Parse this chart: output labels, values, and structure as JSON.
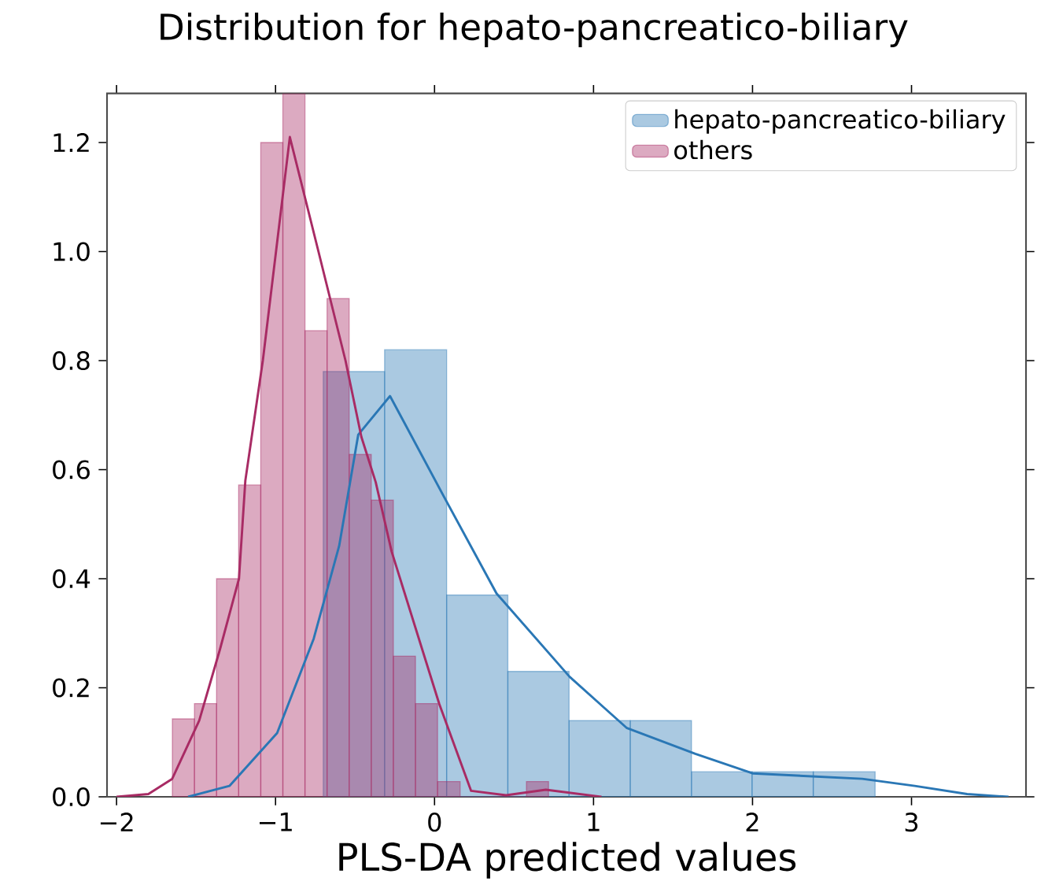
{
  "chart_data": {
    "type": "histogram",
    "title": "Distribution for hepato-pancreatico-biliary",
    "xlabel": "PLS-DA predicted values",
    "series": [
      {
        "name": "hepato-pancreatico-biliary",
        "color": "#2a77b5",
        "bins": [
          -0.7,
          -0.314,
          0.076,
          0.461,
          0.846,
          1.231,
          1.616,
          1.997,
          2.382,
          2.771
        ],
        "values": [
          0.78,
          0.82,
          0.37,
          0.23,
          0.14,
          0.14,
          0.046,
          0.046,
          0.046
        ]
      },
      {
        "name": "others",
        "color": "#a82b64",
        "bins": [
          -1.649,
          -1.51,
          -1.371,
          -1.232,
          -1.093,
          -0.954,
          -0.815,
          -0.676,
          -0.537,
          -0.398,
          -0.259,
          -0.12,
          0.019,
          0.161,
          0.3,
          0.439,
          0.578,
          0.717
        ],
        "values": [
          0.143,
          0.171,
          0.4,
          0.572,
          1.2,
          1.29,
          0.855,
          0.914,
          0.628,
          0.544,
          0.258,
          0.171,
          0.028,
          0,
          0,
          0,
          0.028
        ]
      },
      {
        "type": "line",
        "color": "#2a77b5",
        "x": [
          -1.55,
          -1.29,
          -0.99,
          -0.76,
          -0.6,
          -0.48,
          -0.28,
          0.06,
          0.39,
          0.85,
          1.21,
          1.64,
          2.0,
          2.69,
          3.02,
          3.35,
          3.61
        ],
        "values": [
          0,
          0.02,
          0.117,
          0.29,
          0.46,
          0.664,
          0.735,
          0.55,
          0.373,
          0.22,
          0.126,
          0.079,
          0.043,
          0.033,
          0.02,
          0.005,
          0
        ]
      },
      {
        "type": "line",
        "color": "#a82b64",
        "x": [
          -2.0,
          -1.8,
          -1.65,
          -1.48,
          -1.35,
          -1.23,
          -1.19,
          -1.08,
          -0.91,
          -0.73,
          -0.56,
          -0.46,
          -0.37,
          -0.27,
          0.03,
          0.23,
          0.45,
          0.7,
          1.05
        ],
        "values": [
          0,
          0.005,
          0.033,
          0.14,
          0.27,
          0.4,
          0.58,
          0.8,
          1.21,
          1.0,
          0.8,
          0.66,
          0.577,
          0.45,
          0.17,
          0.011,
          0.003,
          0.013,
          0
        ]
      }
    ],
    "xlim": [
      -2.06,
      3.72
    ],
    "ylim": [
      0,
      1.29
    ],
    "xticks": [
      {
        "value": -2,
        "label": "−2"
      },
      {
        "value": -1,
        "label": "−1"
      },
      0,
      1,
      2,
      3
    ],
    "yticks": [
      {
        "value": 0,
        "label": "0.0"
      },
      {
        "value": 0.2,
        "label": "0.2"
      },
      {
        "value": 0.4,
        "label": "0.4"
      },
      {
        "value": 0.6,
        "label": "0.6"
      },
      {
        "value": 0.8,
        "label": "0.8"
      },
      {
        "value": 1.0,
        "label": "1.0"
      },
      {
        "value": 1.2,
        "label": "1.2"
      }
    ],
    "legend": "top right",
    "grid": false
  }
}
